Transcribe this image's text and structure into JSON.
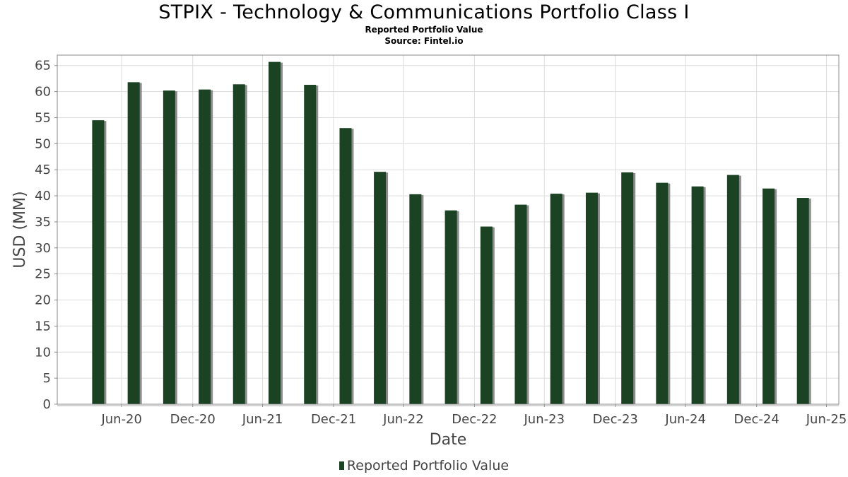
{
  "colors": {
    "bar": "#1a4223",
    "bar_shadow": "#8c8c8c",
    "grid": "#dcdcdc",
    "axis_text": "#444444",
    "plot_border": "#888888"
  },
  "chart_data": {
    "type": "bar",
    "title": "STPIX - Technology & Communications Portfolio Class I",
    "subtitle": "Reported Portfolio Value",
    "source": "Source: Fintel.io",
    "xlabel": "Date",
    "ylabel": "USD (MM)",
    "ylim": [
      0,
      67
    ],
    "yticks": [
      0,
      5,
      10,
      15,
      20,
      25,
      30,
      35,
      40,
      45,
      50,
      55,
      60,
      65
    ],
    "grid": true,
    "legend_placement": "bottom-center",
    "x_range": [
      "2020-01-15",
      "2025-08-01"
    ],
    "x_tick_labels": [
      {
        "label": "Jun-20",
        "date": "2020-06-30"
      },
      {
        "label": "Dec-20",
        "date": "2020-12-31"
      },
      {
        "label": "Jun-21",
        "date": "2021-06-30"
      },
      {
        "label": "Dec-21",
        "date": "2021-12-31"
      },
      {
        "label": "Jun-22",
        "date": "2022-06-30"
      },
      {
        "label": "Dec-22",
        "date": "2022-12-31"
      },
      {
        "label": "Jun-23",
        "date": "2023-06-30"
      },
      {
        "label": "Dec-23",
        "date": "2023-12-31"
      },
      {
        "label": "Jun-24",
        "date": "2024-06-30"
      },
      {
        "label": "Dec-24",
        "date": "2024-12-31"
      },
      {
        "label": "Jun-25",
        "date": "2025-06-30"
      }
    ],
    "series": [
      {
        "name": "Reported Portfolio Value",
        "points": [
          {
            "date": "2020-04-30",
            "value": 54.5
          },
          {
            "date": "2020-07-31",
            "value": 61.8
          },
          {
            "date": "2020-10-31",
            "value": 60.2
          },
          {
            "date": "2021-01-31",
            "value": 60.4
          },
          {
            "date": "2021-04-30",
            "value": 61.4
          },
          {
            "date": "2021-07-31",
            "value": 65.7
          },
          {
            "date": "2021-10-31",
            "value": 61.3
          },
          {
            "date": "2022-01-31",
            "value": 53.0
          },
          {
            "date": "2022-04-30",
            "value": 44.6
          },
          {
            "date": "2022-07-31",
            "value": 40.3
          },
          {
            "date": "2022-10-31",
            "value": 37.2
          },
          {
            "date": "2023-01-31",
            "value": 34.1
          },
          {
            "date": "2023-04-30",
            "value": 38.3
          },
          {
            "date": "2023-07-31",
            "value": 40.4
          },
          {
            "date": "2023-10-31",
            "value": 40.6
          },
          {
            "date": "2024-01-31",
            "value": 44.5
          },
          {
            "date": "2024-04-30",
            "value": 42.5
          },
          {
            "date": "2024-07-31",
            "value": 41.8
          },
          {
            "date": "2024-10-31",
            "value": 44.0
          },
          {
            "date": "2025-01-31",
            "value": 41.4
          },
          {
            "date": "2025-04-30",
            "value": 39.6
          }
        ]
      }
    ]
  }
}
